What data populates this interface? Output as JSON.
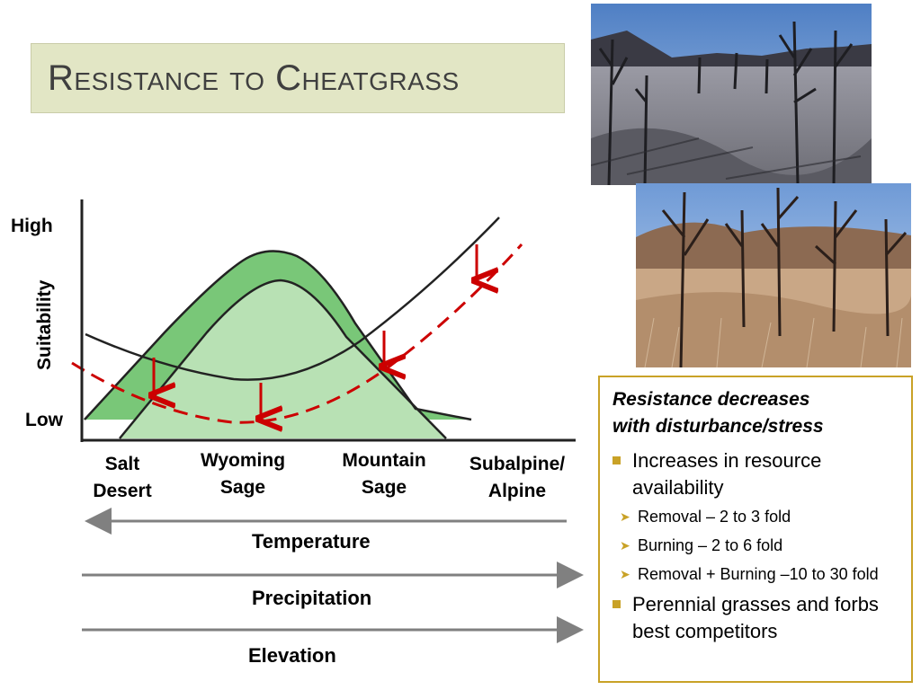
{
  "title": "Resistance to Cheatgrass",
  "diagram": {
    "y_high": "High",
    "y_low": "Low",
    "y_axis_title": "Suitability",
    "zones": [
      {
        "line1": "Salt",
        "line2": "Desert"
      },
      {
        "line1": "Wyoming",
        "line2": "Sage"
      },
      {
        "line1": "Mountain",
        "line2": "Sage"
      },
      {
        "line1": "Subalpine/",
        "line2": "Alpine"
      }
    ],
    "gradients": [
      "Temperature",
      "Precipitation",
      "Elevation"
    ],
    "colors": {
      "outer_band": "#79c778",
      "inner_band": "#b8e1b4",
      "resistance_curve": "#cc0000",
      "gradient_arrow": "#808080"
    }
  },
  "info": {
    "heading_line1": "Resistance decreases",
    "heading_line2": "with disturbance/stress",
    "bullets": [
      {
        "level": 1,
        "text": "Increases in resource availability"
      },
      {
        "level": 2,
        "text": "Removal – 2 to 3 fold"
      },
      {
        "level": 2,
        "text": "Burning – 2 to 6 fold"
      },
      {
        "level": 2,
        "text": "Removal + Burning –10 to 30 fold"
      },
      {
        "level": 1,
        "text": "Perennial grasses and forbs best competitors"
      }
    ],
    "accent_color": "#c9a227"
  },
  "photos": [
    {
      "name": "burned-forest-photo"
    },
    {
      "name": "burned-grassland-photo"
    }
  ]
}
